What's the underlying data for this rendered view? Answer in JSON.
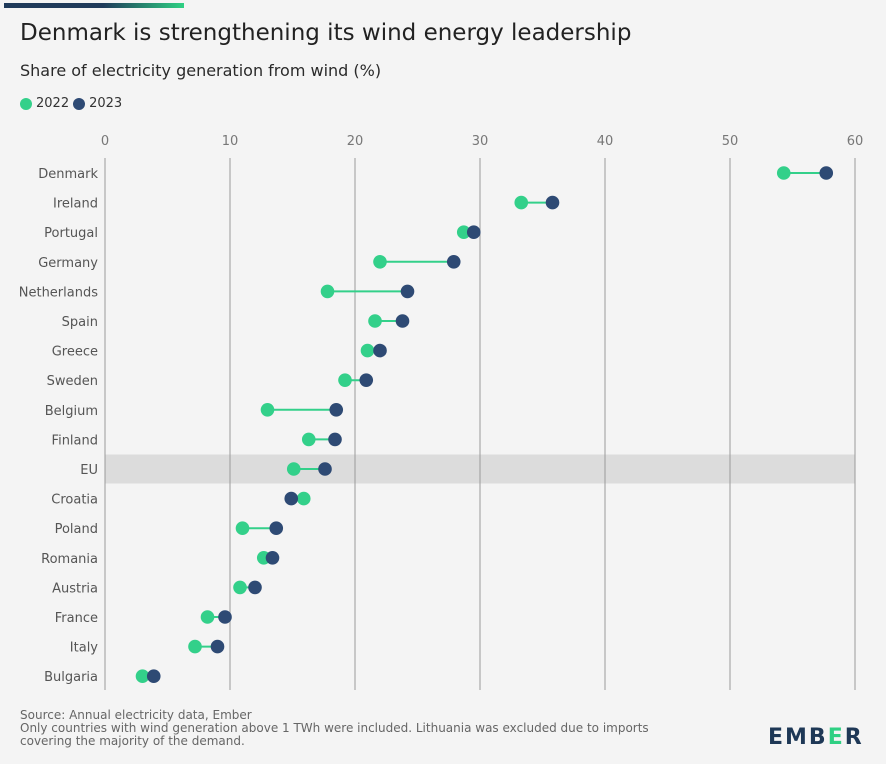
{
  "title": "Denmark is strengthening its wind energy leadership",
  "subtitle": "Share of electricity generation from wind (%)",
  "legend": [
    {
      "label": "2022",
      "color": "#33d08a"
    },
    {
      "label": "2023",
      "color": "#2e4a74"
    }
  ],
  "source_lines": [
    "Source: Annual electricity data, Ember",
    "Only countries with wind generation above 1 TWh were included. Lithuania was excluded due to imports",
    "covering the majority of the demand."
  ],
  "logo": {
    "text_left": "EMB",
    "text_mid": "E",
    "text_right": "R"
  },
  "colors": {
    "connector": "#33d08a",
    "highlight_band": "#dcdcdc",
    "gridline": "#9a9a9a"
  },
  "chart_data": {
    "type": "dumbbell",
    "xlim": [
      0,
      60
    ],
    "x_ticks": [
      0,
      10,
      20,
      30,
      40,
      50,
      60
    ],
    "highlight": "EU",
    "categories": [
      "Denmark",
      "Ireland",
      "Portugal",
      "Germany",
      "Netherlands",
      "Spain",
      "Greece",
      "Sweden",
      "Belgium",
      "Finland",
      "EU",
      "Croatia",
      "Poland",
      "Romania",
      "Austria",
      "France",
      "Italy",
      "Bulgaria"
    ],
    "series": [
      {
        "name": "2022",
        "values": [
          54.3,
          33.3,
          28.7,
          22.0,
          17.8,
          21.6,
          21.0,
          19.2,
          13.0,
          16.3,
          15.1,
          15.9,
          11.0,
          12.7,
          10.8,
          8.2,
          7.2,
          3.0
        ]
      },
      {
        "name": "2023",
        "values": [
          57.7,
          35.8,
          29.5,
          27.9,
          24.2,
          23.8,
          22.0,
          20.9,
          18.5,
          18.4,
          17.6,
          14.9,
          13.7,
          13.4,
          12.0,
          9.6,
          9.0,
          3.9
        ]
      }
    ]
  }
}
